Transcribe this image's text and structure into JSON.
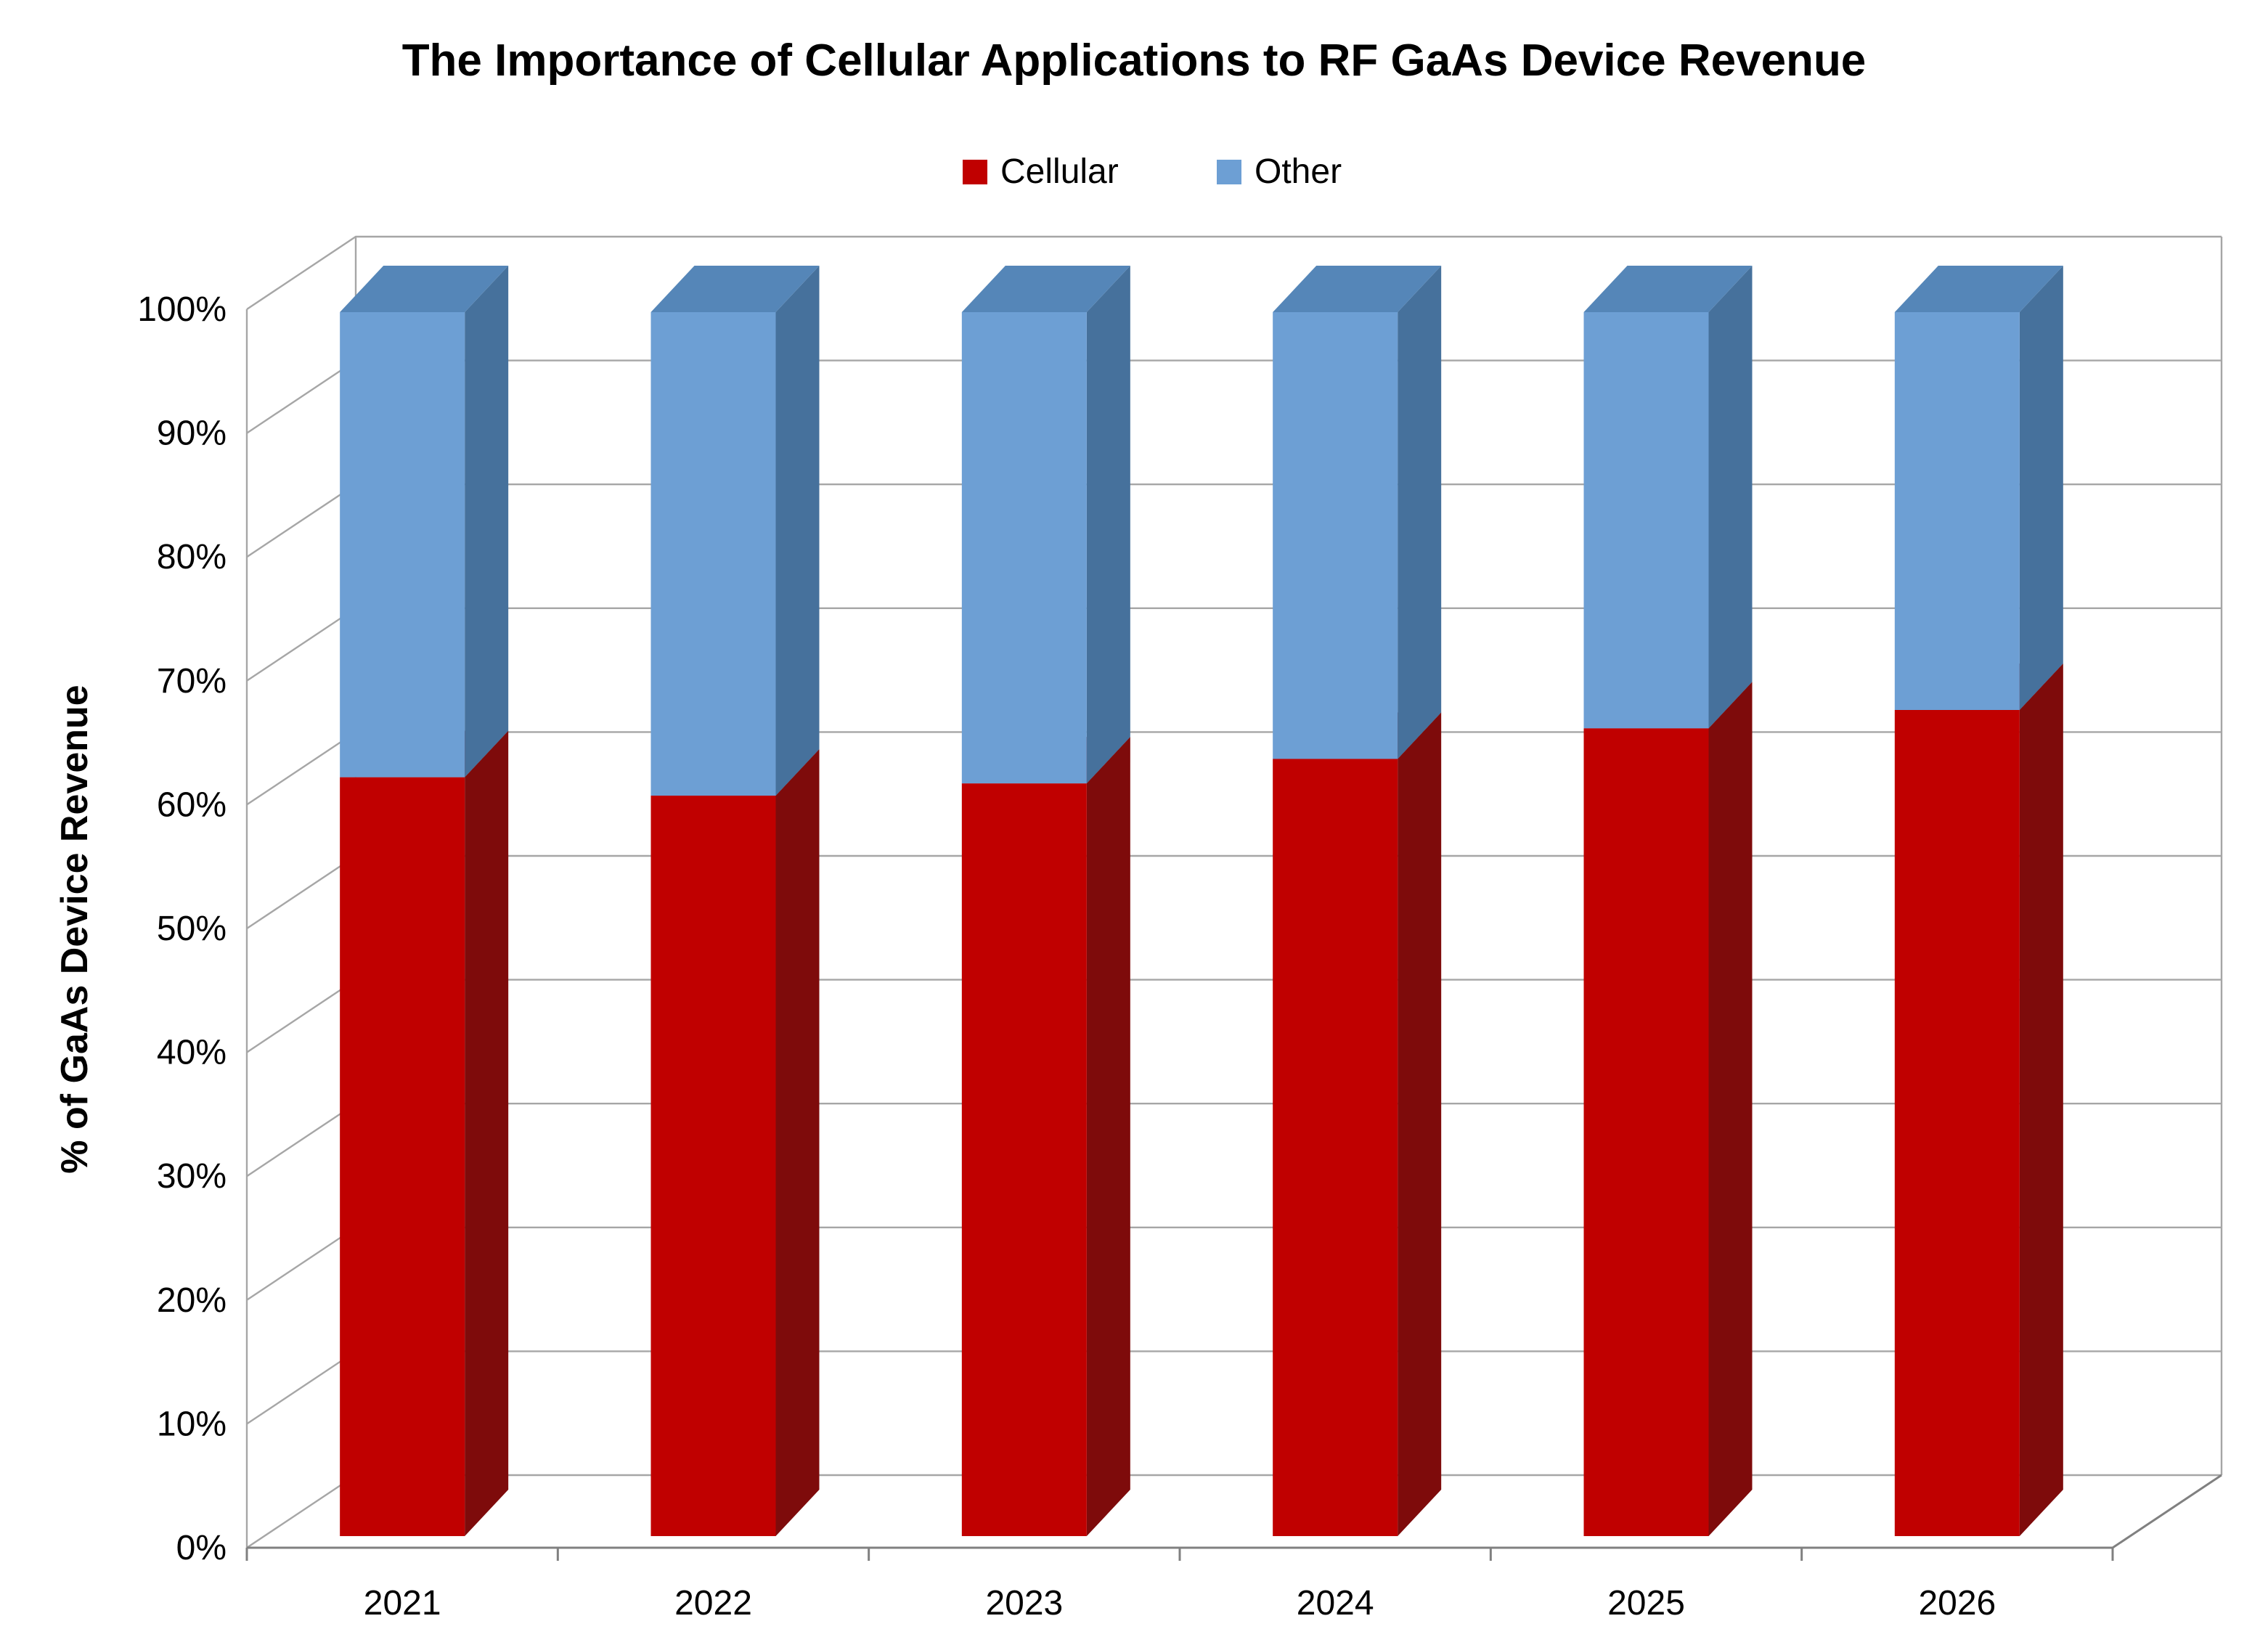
{
  "chart_data": {
    "type": "bar",
    "variant": "3d-stacked-100-percent",
    "title": "The Importance of Cellular Applications to RF GaAs Device Revenue",
    "categories": [
      "2021",
      "2022",
      "2023",
      "2024",
      "2025",
      "2026"
    ],
    "series": [
      {
        "name": "Cellular",
        "values": [
          62,
          60.5,
          61.5,
          63.5,
          66,
          67.5
        ]
      },
      {
        "name": "Other",
        "values": [
          38,
          39.5,
          38.5,
          36.5,
          34,
          32.5
        ]
      }
    ],
    "xlabel": "",
    "ylabel": "% of GaAs Device Revenue",
    "ylim": [
      0,
      100
    ],
    "ytick_step": 10,
    "ytick_format": "percent",
    "legend_position": "top",
    "grid": true
  },
  "colors": {
    "cellular": {
      "front": "#C00000",
      "side": "#7E0B0B",
      "top": "#9E0C0C"
    },
    "other": {
      "front": "#6D9FD4",
      "side": "#46719C",
      "top": "#5586B8"
    },
    "gridline": "#A6A6A6",
    "axis": "#808080",
    "text": "#000000"
  }
}
